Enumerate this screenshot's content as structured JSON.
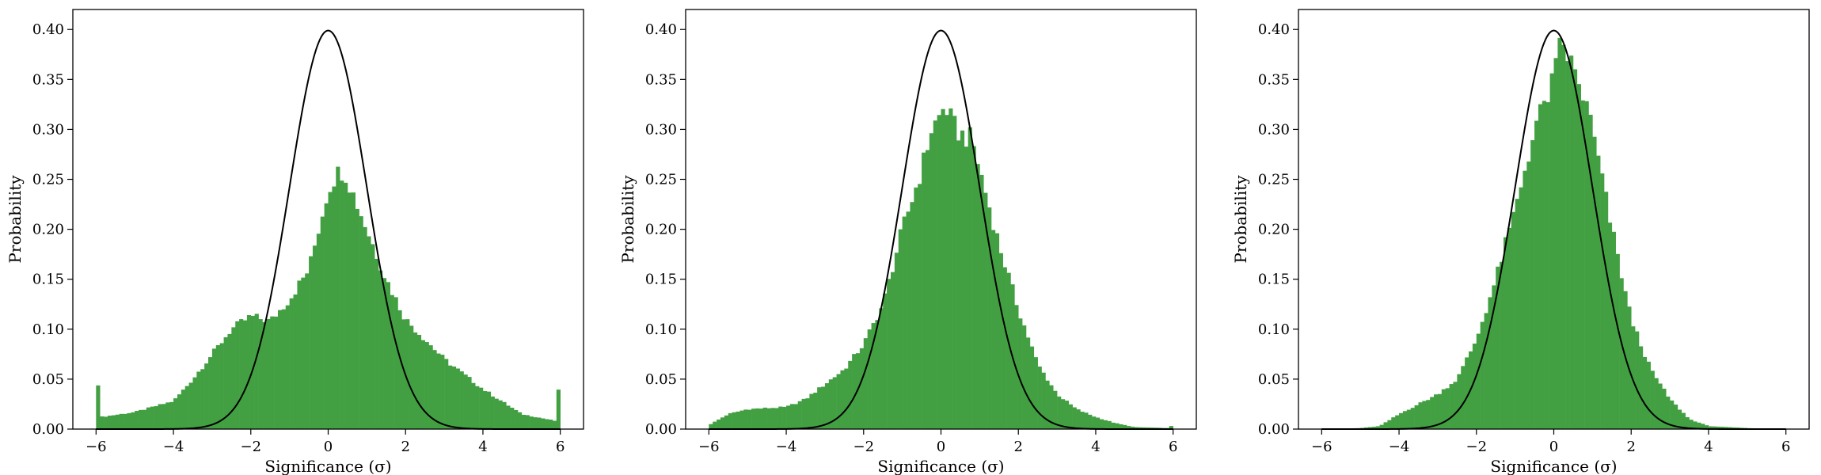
{
  "chart_data": [
    {
      "type": "bar",
      "xlabel": "Significance (σ)",
      "ylabel": "Probability",
      "xlim": [
        -6.6,
        6.6
      ],
      "ylim": [
        0,
        0.42
      ],
      "xticks": [
        -6,
        -4,
        -2,
        0,
        2,
        4,
        6
      ],
      "yticks": [
        0.0,
        0.05,
        0.1,
        0.15,
        0.2,
        0.25,
        0.3,
        0.35,
        0.4
      ],
      "bar_color": "#42a042",
      "curve": {
        "type": "gaussian",
        "mean": 0,
        "sigma": 1,
        "color": "#000000"
      },
      "hist_anchors": [
        [
          -6.0,
          0.079
        ],
        [
          -5.9,
          0.012
        ],
        [
          -5.0,
          0.017
        ],
        [
          -4.0,
          0.028
        ],
        [
          -3.5,
          0.05
        ],
        [
          -3.0,
          0.075
        ],
        [
          -2.5,
          0.1
        ],
        [
          -2.0,
          0.113
        ],
        [
          -1.5,
          0.108
        ],
        [
          -1.0,
          0.13
        ],
        [
          -0.5,
          0.16
        ],
        [
          -0.25,
          0.2
        ],
        [
          0.0,
          0.24
        ],
        [
          0.2,
          0.255
        ],
        [
          0.4,
          0.26
        ],
        [
          0.6,
          0.24
        ],
        [
          1.0,
          0.2
        ],
        [
          1.5,
          0.15
        ],
        [
          2.0,
          0.11
        ],
        [
          2.5,
          0.09
        ],
        [
          3.0,
          0.07
        ],
        [
          4.0,
          0.04
        ],
        [
          5.0,
          0.015
        ],
        [
          5.9,
          0.008
        ],
        [
          6.0,
          0.068
        ]
      ]
    },
    {
      "type": "bar",
      "xlabel": "Significance (σ)",
      "ylabel": "Probability",
      "xlim": [
        -6.6,
        6.6
      ],
      "ylim": [
        0,
        0.42
      ],
      "xticks": [
        -6,
        -4,
        -2,
        0,
        2,
        4,
        6
      ],
      "yticks": [
        0.0,
        0.05,
        0.1,
        0.15,
        0.2,
        0.25,
        0.3,
        0.35,
        0.4
      ],
      "bar_color": "#42a042",
      "curve": {
        "type": "gaussian",
        "mean": 0,
        "sigma": 1,
        "color": "#000000"
      },
      "hist_anchors": [
        [
          -6.0,
          0.004
        ],
        [
          -5.5,
          0.015
        ],
        [
          -5.0,
          0.02
        ],
        [
          -4.0,
          0.022
        ],
        [
          -3.5,
          0.03
        ],
        [
          -3.0,
          0.045
        ],
        [
          -2.5,
          0.06
        ],
        [
          -2.0,
          0.085
        ],
        [
          -1.5,
          0.125
        ],
        [
          -1.0,
          0.2
        ],
        [
          -0.5,
          0.26
        ],
        [
          -0.25,
          0.3
        ],
        [
          0.0,
          0.315
        ],
        [
          0.1,
          0.325
        ],
        [
          0.3,
          0.305
        ],
        [
          0.5,
          0.295
        ],
        [
          0.8,
          0.29
        ],
        [
          1.0,
          0.26
        ],
        [
          1.5,
          0.185
        ],
        [
          2.0,
          0.12
        ],
        [
          2.5,
          0.065
        ],
        [
          3.0,
          0.035
        ],
        [
          3.5,
          0.02
        ],
        [
          4.0,
          0.012
        ],
        [
          4.5,
          0.006
        ],
        [
          5.0,
          0.002
        ],
        [
          5.9,
          0.001
        ],
        [
          6.0,
          0.005
        ]
      ]
    },
    {
      "type": "bar",
      "xlabel": "Significance (σ)",
      "ylabel": "Probability",
      "xlim": [
        -6.6,
        6.6
      ],
      "ylim": [
        0,
        0.42
      ],
      "xticks": [
        -6,
        -4,
        -2,
        0,
        2,
        4,
        6
      ],
      "yticks": [
        0.0,
        0.05,
        0.1,
        0.15,
        0.2,
        0.25,
        0.3,
        0.35,
        0.4
      ],
      "bar_color": "#42a042",
      "curve": {
        "type": "gaussian",
        "mean": 0,
        "sigma": 1,
        "color": "#000000"
      },
      "hist_anchors": [
        [
          -6.0,
          0.0
        ],
        [
          -5.0,
          0.001
        ],
        [
          -4.5,
          0.003
        ],
        [
          -4.0,
          0.015
        ],
        [
          -3.5,
          0.025
        ],
        [
          -3.0,
          0.035
        ],
        [
          -2.5,
          0.05
        ],
        [
          -2.0,
          0.09
        ],
        [
          -1.5,
          0.15
        ],
        [
          -1.0,
          0.22
        ],
        [
          -0.5,
          0.3
        ],
        [
          0.0,
          0.35
        ],
        [
          0.2,
          0.39
        ],
        [
          0.4,
          0.37
        ],
        [
          0.8,
          0.33
        ],
        [
          1.0,
          0.3
        ],
        [
          1.5,
          0.2
        ],
        [
          2.0,
          0.11
        ],
        [
          2.5,
          0.06
        ],
        [
          3.0,
          0.03
        ],
        [
          3.5,
          0.01
        ],
        [
          4.0,
          0.003
        ],
        [
          5.0,
          0.001
        ],
        [
          6.0,
          0.0
        ]
      ]
    }
  ]
}
